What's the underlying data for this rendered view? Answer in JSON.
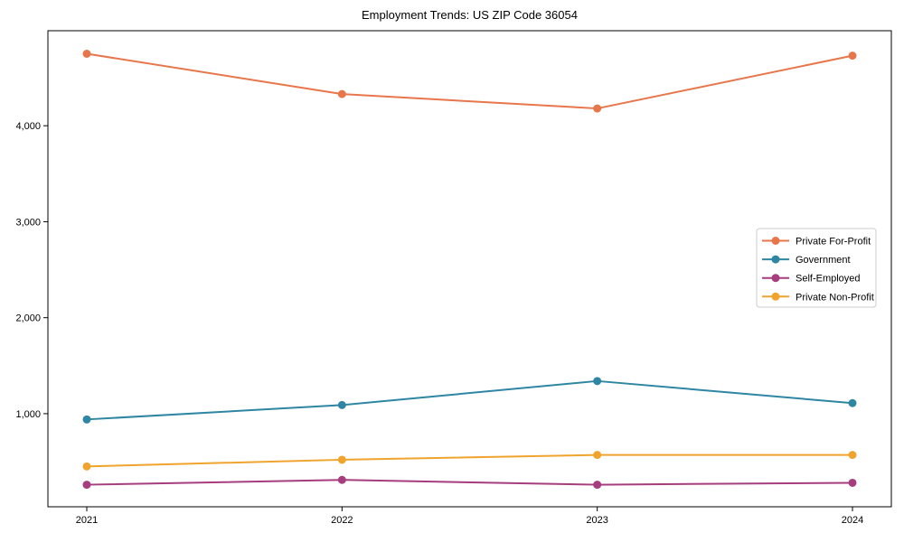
{
  "chart_data": {
    "type": "line",
    "title": "Employment Trends: US ZIP Code 36054",
    "x": [
      2021,
      2022,
      2023,
      2024
    ],
    "x_labels": [
      "2021",
      "2022",
      "2023",
      "2024"
    ],
    "series": [
      {
        "name": "Private For-Profit",
        "color": "#e8764b",
        "values": [
          4750,
          4330,
          4180,
          4730
        ]
      },
      {
        "name": "Government",
        "color": "#2e86a3",
        "values": [
          940,
          1090,
          1340,
          1110
        ]
      },
      {
        "name": "Self-Employed",
        "color": "#a53d7e",
        "values": [
          260,
          310,
          260,
          280
        ]
      },
      {
        "name": "Private Non-Profit",
        "color": "#f0a42e",
        "values": [
          450,
          520,
          570,
          570
        ]
      }
    ],
    "yticks": {
      "values": [
        1000,
        2000,
        3000,
        4000
      ],
      "labels": [
        "1,000",
        "2,000",
        "3,000",
        "4,000"
      ]
    },
    "ylim": [
      30,
      4990
    ],
    "xlabel": "",
    "ylabel": "",
    "grid": false,
    "legend_position": "center-right",
    "axis_color": "#000000",
    "tick_label_color": "#000000",
    "legend_border_color": "#cccccc",
    "background": "#ffffff"
  }
}
